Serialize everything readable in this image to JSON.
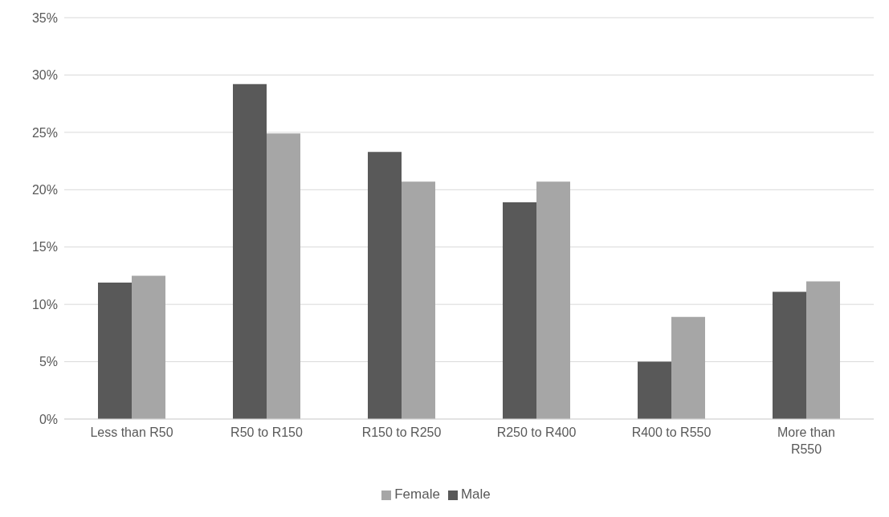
{
  "chart_data": {
    "type": "bar",
    "categories": [
      "Less than R50",
      "R50 to R150",
      "R150 to R250",
      "R250 to R400",
      "R400 to R550",
      "More than R550"
    ],
    "series": [
      {
        "name": "Male",
        "color": "#595959",
        "values": [
          11.9,
          29.2,
          23.3,
          18.9,
          5.0,
          11.1
        ]
      },
      {
        "name": "Female",
        "color": "#a6a6a6",
        "values": [
          12.5,
          24.9,
          20.7,
          20.7,
          8.9,
          12.0
        ]
      }
    ],
    "ylim": [
      0,
      35
    ],
    "yticks": [
      {
        "value": 0,
        "label": "0%"
      },
      {
        "value": 5,
        "label": "5%"
      },
      {
        "value": 10,
        "label": "10%"
      },
      {
        "value": 15,
        "label": "15%"
      },
      {
        "value": 20,
        "label": "20%"
      },
      {
        "value": 25,
        "label": "25%"
      },
      {
        "value": 30,
        "label": "30%"
      },
      {
        "value": 35,
        "label": "35%"
      }
    ],
    "grid": "y",
    "legend": "bottom"
  }
}
